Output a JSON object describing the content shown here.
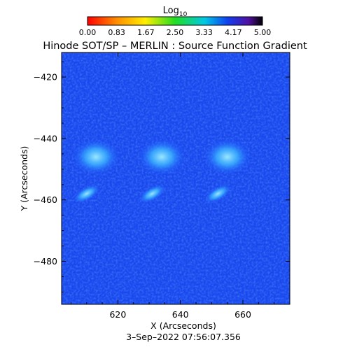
{
  "colorbar": {
    "label_main": "Log",
    "label_sub": "10",
    "ticks": [
      "0.00",
      "0.83",
      "1.67",
      "2.50",
      "3.33",
      "4.17",
      "5.00"
    ],
    "range": [
      0,
      5
    ],
    "colormap": "rainbow"
  },
  "chart_data": {
    "type": "heatmap",
    "title": "Hinode SOT/SP – MERLIN : Source Function Gradient",
    "xlabel": "X (Arcseconds)",
    "ylabel": "Y (Arcseconds)",
    "xlim": [
      602,
      675
    ],
    "ylim": [
      -494,
      -412
    ],
    "x_ticks": [
      620,
      640,
      660
    ],
    "y_ticks": [
      -420,
      -440,
      -460,
      -480
    ],
    "x_tick_labels": [
      "620",
      "640",
      "660"
    ],
    "y_tick_labels": [
      "−420",
      "−440",
      "−460",
      "−480"
    ],
    "value_range": [
      0,
      5
    ],
    "background_level": 3.8,
    "bright_features": [
      {
        "x": 613,
        "y": -446,
        "level": 2.9
      },
      {
        "x": 634,
        "y": -446,
        "level": 2.9
      },
      {
        "x": 655,
        "y": -446,
        "level": 2.9
      },
      {
        "x": 610,
        "y": -458,
        "level": 3.3
      },
      {
        "x": 631,
        "y": -458,
        "level": 3.3
      },
      {
        "x": 652,
        "y": -458,
        "level": 3.3
      }
    ]
  },
  "timestamp": "3–Sep–2022 07:56:07.356"
}
